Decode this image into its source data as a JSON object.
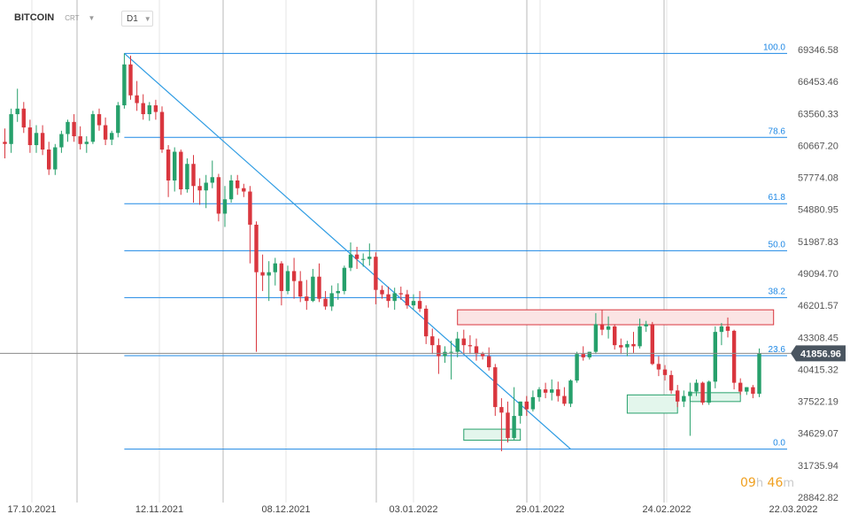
{
  "header": {
    "symbol": "BITCOIN",
    "symbol_sub": "CRT",
    "timeframe": "D1",
    "caret": "▼"
  },
  "price_axis_labels": [
    "69346.58",
    "66453.46",
    "63560.33",
    "60667.20",
    "57774.08",
    "54880.95",
    "51987.83",
    "49094.70",
    "46201.57",
    "43308.45",
    "40415.32",
    "37522.19",
    "34629.07",
    "31735.94",
    "28842.82"
  ],
  "last_price": "41856.96",
  "countdown": {
    "hours": "09",
    "h_unit": "h",
    "minutes": "46",
    "m_unit": "m"
  },
  "colors": {
    "bull": "#26a06b",
    "bear": "#d9363e",
    "fib": "#1e88e5",
    "trend": "#2c9be3",
    "resistance_fill": "#fbe4e4",
    "resistance_stroke": "#d9363e",
    "support_fill": "#e3f6ec",
    "support_stroke": "#26a06b",
    "price_tag": "#4a5560"
  },
  "chart_data": {
    "type": "candlestick",
    "title": "",
    "xlabel": "",
    "ylabel": "",
    "x_tick_labels": [
      "17.10.2021",
      "12.11.2021",
      "08.12.2021",
      "03.01.2022",
      "29.01.2022",
      "24.02.2022",
      "22.03.2022"
    ],
    "ylim": [
      28842.82,
      69346.58
    ],
    "y_ticks": [
      69346.58,
      66453.46,
      63560.33,
      60667.2,
      57774.08,
      54880.95,
      51987.83,
      49094.7,
      46201.57,
      43308.45,
      40415.32,
      37522.19,
      34629.07,
      31735.94,
      28842.82
    ],
    "fib_levels": [
      {
        "label": "100.0",
        "price": 69000
      },
      {
        "label": "78.6",
        "price": 61400
      },
      {
        "label": "61.8",
        "price": 55400
      },
      {
        "label": "50.0",
        "price": 51150
      },
      {
        "label": "38.2",
        "price": 46900
      },
      {
        "label": "23.6",
        "price": 41650
      },
      {
        "label": "0.0",
        "price": 33200
      }
    ],
    "trendline": {
      "from": {
        "day": 19,
        "price": 69000
      },
      "to": {
        "day": 90,
        "price": 33200
      }
    },
    "resistance_zone": {
      "day_from": 72,
      "day_to": 122,
      "price_top": 45800,
      "price_bottom": 44450
    },
    "support_zones": [
      {
        "day_from": 73,
        "day_to": 82,
        "price_top": 35000,
        "price_bottom": 34000
      },
      {
        "day_from": 99,
        "day_to": 107,
        "price_top": 38100,
        "price_bottom": 36450
      },
      {
        "day_from": 109,
        "day_to": 117,
        "price_top": 38300,
        "price_bottom": 37500
      }
    ],
    "series": [
      {
        "ohlc": [
          [
            61000,
            62200,
            59500,
            60800
          ],
          [
            60800,
            64000,
            60000,
            63500
          ],
          [
            63500,
            65800,
            62800,
            64000
          ],
          [
            64000,
            64600,
            61800,
            62300
          ],
          [
            62300,
            63000,
            60000,
            60700
          ],
          [
            60700,
            62500,
            60000,
            61800
          ],
          [
            61800,
            62500,
            59800,
            60300
          ],
          [
            60300,
            61000,
            58000,
            58500
          ],
          [
            58500,
            60800,
            58000,
            60500
          ],
          [
            60500,
            62000,
            60000,
            61700
          ],
          [
            61700,
            63000,
            61000,
            62800
          ],
          [
            62800,
            63500,
            61000,
            61500
          ],
          [
            61500,
            62400,
            60300,
            60800
          ],
          [
            60800,
            61500,
            60000,
            61000
          ],
          [
            61000,
            63800,
            60800,
            63500
          ],
          [
            63500,
            64000,
            62000,
            62500
          ],
          [
            62500,
            63200,
            60700,
            61200
          ],
          [
            61200,
            62000,
            60700,
            61800
          ],
          [
            61800,
            64600,
            61400,
            64300
          ],
          [
            64300,
            69000,
            64000,
            68000
          ],
          [
            68000,
            68800,
            64800,
            65200
          ],
          [
            65200,
            66500,
            63800,
            64500
          ],
          [
            64500,
            65300,
            63000,
            63500
          ],
          [
            63500,
            64600,
            62900,
            64300
          ],
          [
            64300,
            64800,
            63000,
            63700
          ],
          [
            63700,
            64200,
            60000,
            60300
          ],
          [
            60300,
            60700,
            56000,
            57500
          ],
          [
            57500,
            60500,
            56500,
            60100
          ],
          [
            60100,
            60300,
            56200,
            56700
          ],
          [
            56700,
            59500,
            56400,
            59000
          ],
          [
            59000,
            59800,
            55500,
            57000
          ],
          [
            57000,
            57700,
            55300,
            56600
          ],
          [
            56600,
            58000,
            55000,
            57300
          ],
          [
            57300,
            59300,
            56800,
            57800
          ],
          [
            57800,
            58100,
            53800,
            54500
          ],
          [
            54500,
            57000,
            53300,
            55800
          ],
          [
            55800,
            58000,
            55500,
            57500
          ],
          [
            57500,
            58000,
            56200,
            56800
          ],
          [
            56800,
            57200,
            56000,
            56500
          ],
          [
            56500,
            57000,
            50000,
            53500
          ],
          [
            53500,
            53800,
            42000,
            49200
          ],
          [
            49200,
            50800,
            47500,
            48900
          ],
          [
            48900,
            50200,
            46600,
            49200
          ],
          [
            49200,
            50500,
            48000,
            50000
          ],
          [
            50000,
            50200,
            46200,
            47500
          ],
          [
            47500,
            49800,
            47200,
            49300
          ],
          [
            49300,
            50500,
            46800,
            48400
          ],
          [
            48400,
            49300,
            46500,
            47000
          ],
          [
            47000,
            48500,
            45800,
            46600
          ],
          [
            46600,
            49500,
            46500,
            48800
          ],
          [
            48800,
            50000,
            46500,
            46800
          ],
          [
            46800,
            47500,
            45800,
            46100
          ],
          [
            46100,
            48000,
            45700,
            47300
          ],
          [
            47300,
            48200,
            46700,
            47500
          ],
          [
            47500,
            49800,
            47200,
            49600
          ],
          [
            49600,
            51900,
            49300,
            50800
          ],
          [
            50800,
            51500,
            49500,
            50400
          ],
          [
            50400,
            50900,
            49700,
            50400
          ],
          [
            50400,
            51800,
            49800,
            50600
          ],
          [
            50600,
            51000,
            46300,
            47600
          ],
          [
            47600,
            48000,
            46800,
            47200
          ],
          [
            47200,
            47900,
            46000,
            46600
          ],
          [
            46600,
            47800,
            45800,
            47300
          ],
          [
            47300,
            47900,
            46700,
            47200
          ],
          [
            47200,
            47600,
            45900,
            46200
          ],
          [
            46200,
            47200,
            45800,
            46600
          ],
          [
            46600,
            47500,
            45600,
            45900
          ],
          [
            45900,
            46200,
            42700,
            43400
          ],
          [
            43400,
            44100,
            41800,
            42600
          ],
          [
            42600,
            43200,
            40000,
            41600
          ],
          [
            41600,
            42500,
            41000,
            42000
          ],
          [
            42000,
            43000,
            39500,
            42000
          ],
          [
            42000,
            43800,
            41500,
            43200
          ],
          [
            43200,
            44000,
            41800,
            42600
          ],
          [
            42600,
            43500,
            41800,
            42500
          ],
          [
            42500,
            43200,
            41200,
            41800
          ],
          [
            41800,
            42000,
            41300,
            41600
          ],
          [
            41600,
            42400,
            40300,
            40600
          ],
          [
            40600,
            40900,
            36200,
            37000
          ],
          [
            37000,
            37800,
            33000,
            36500
          ],
          [
            36500,
            37500,
            33800,
            34200
          ],
          [
            34200,
            38800,
            34000,
            36200
          ],
          [
            36200,
            37500,
            35500,
            37500
          ],
          [
            37500,
            38000,
            36200,
            36800
          ],
          [
            36800,
            38500,
            36600,
            37900
          ],
          [
            37900,
            38800,
            37500,
            38600
          ],
          [
            38600,
            39200,
            37800,
            38300
          ],
          [
            38300,
            39500,
            37600,
            38600
          ],
          [
            38600,
            39300,
            37500,
            38000
          ],
          [
            38000,
            38800,
            37100,
            37300
          ],
          [
            37300,
            39500,
            37000,
            39400
          ],
          [
            39400,
            42000,
            39200,
            41800
          ],
          [
            41800,
            42500,
            41200,
            41500
          ],
          [
            41500,
            42000,
            41300,
            42000
          ],
          [
            42000,
            45500,
            41800,
            44500
          ],
          [
            44500,
            45800,
            43500,
            44000
          ],
          [
            44000,
            45200,
            43200,
            44300
          ],
          [
            44300,
            44500,
            42200,
            42600
          ],
          [
            42600,
            43200,
            41800,
            42400
          ],
          [
            42400,
            43000,
            41600,
            42700
          ],
          [
            42700,
            43800,
            41900,
            42500
          ],
          [
            42500,
            45000,
            42300,
            44300
          ],
          [
            44300,
            44800,
            43800,
            44500
          ],
          [
            44500,
            44700,
            40800,
            40900
          ],
          [
            40900,
            41600,
            39800,
            40400
          ],
          [
            40400,
            40800,
            39400,
            39900
          ],
          [
            39900,
            40300,
            38200,
            38500
          ],
          [
            38500,
            39000,
            37000,
            37500
          ],
          [
            37500,
            38500,
            37000,
            38000
          ],
          [
            38000,
            39200,
            34400,
            38400
          ],
          [
            38400,
            39500,
            38000,
            39200
          ],
          [
            39200,
            39300,
            37200,
            37400
          ],
          [
            37400,
            39400,
            37200,
            39300
          ],
          [
            39300,
            44300,
            38700,
            43800
          ],
          [
            43800,
            44600,
            42600,
            44300
          ],
          [
            44300,
            45100,
            43300,
            43900
          ],
          [
            43900,
            44000,
            38600,
            39200
          ],
          [
            39200,
            39600,
            38100,
            38400
          ],
          [
            38400,
            38800,
            38100,
            38800
          ],
          [
            38800,
            39000,
            37800,
            38200
          ],
          [
            38200,
            42300,
            37900,
            41857
          ]
        ]
      }
    ]
  }
}
